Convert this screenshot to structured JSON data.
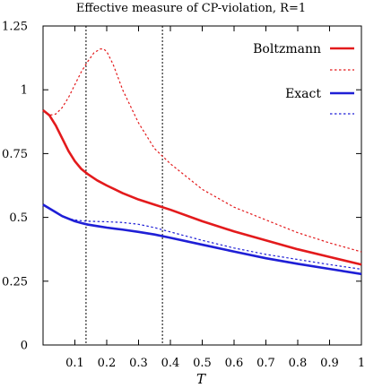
{
  "chart_data": {
    "type": "line",
    "title": "Effective measure of CP-violation, R=1",
    "xlabel": "T",
    "ylabel": "",
    "xlim": [
      0,
      1
    ],
    "ylim": [
      0,
      1.25
    ],
    "x_ticks": [
      "0.1",
      "0.2",
      "0.3",
      "0.4",
      "0.5",
      "0.6",
      "0.7",
      "0.8",
      "0.9",
      "1"
    ],
    "y_ticks": [
      "0",
      "0.25",
      "0.5",
      "0.75",
      "1",
      "1.25"
    ],
    "x_tick_values": [
      0.1,
      0.2,
      0.3,
      0.4,
      0.5,
      0.6,
      0.7,
      0.8,
      0.9,
      1.0
    ],
    "y_tick_values": [
      0,
      0.25,
      0.5,
      0.75,
      1.0,
      1.25
    ],
    "vertical_lines": [
      0.135,
      0.375
    ],
    "legend_position": "top-right",
    "series": [
      {
        "name": "Boltzmann",
        "color": "#e31a1c",
        "style": "solid",
        "x": [
          0.0,
          0.02,
          0.04,
          0.06,
          0.08,
          0.1,
          0.12,
          0.14,
          0.17,
          0.2,
          0.25,
          0.3,
          0.35,
          0.4,
          0.5,
          0.6,
          0.7,
          0.8,
          0.9,
          1.0
        ],
        "y": [
          0.92,
          0.9,
          0.86,
          0.81,
          0.76,
          0.72,
          0.69,
          0.67,
          0.645,
          0.625,
          0.595,
          0.57,
          0.55,
          0.53,
          0.485,
          0.445,
          0.41,
          0.375,
          0.345,
          0.315
        ]
      },
      {
        "name": "",
        "color": "#e31a1c",
        "style": "dotted",
        "x": [
          0.0,
          0.02,
          0.04,
          0.06,
          0.08,
          0.1,
          0.12,
          0.14,
          0.16,
          0.18,
          0.19,
          0.2,
          0.22,
          0.25,
          0.3,
          0.35,
          0.4,
          0.5,
          0.6,
          0.7,
          0.8,
          0.9,
          1.0
        ],
        "y": [
          0.92,
          0.9,
          0.905,
          0.93,
          0.97,
          1.02,
          1.07,
          1.11,
          1.145,
          1.16,
          1.16,
          1.15,
          1.1,
          1.0,
          0.87,
          0.77,
          0.71,
          0.61,
          0.54,
          0.49,
          0.44,
          0.4,
          0.365
        ]
      },
      {
        "name": "Exact",
        "color": "#1f1fd6",
        "style": "solid",
        "x": [
          0.0,
          0.02,
          0.04,
          0.06,
          0.08,
          0.1,
          0.12,
          0.14,
          0.17,
          0.2,
          0.25,
          0.3,
          0.35,
          0.4,
          0.5,
          0.6,
          0.7,
          0.8,
          0.9,
          1.0
        ],
        "y": [
          0.55,
          0.535,
          0.52,
          0.505,
          0.495,
          0.485,
          0.478,
          0.472,
          0.466,
          0.46,
          0.452,
          0.443,
          0.433,
          0.42,
          0.393,
          0.366,
          0.34,
          0.318,
          0.298,
          0.278
        ]
      },
      {
        "name": "",
        "color": "#1f1fd6",
        "style": "dotted",
        "x": [
          0.0,
          0.02,
          0.04,
          0.06,
          0.08,
          0.1,
          0.12,
          0.14,
          0.17,
          0.2,
          0.25,
          0.3,
          0.35,
          0.4,
          0.5,
          0.6,
          0.7,
          0.8,
          0.9,
          1.0
        ],
        "y": [
          0.55,
          0.535,
          0.52,
          0.505,
          0.495,
          0.49,
          0.487,
          0.485,
          0.484,
          0.483,
          0.48,
          0.473,
          0.46,
          0.443,
          0.41,
          0.38,
          0.355,
          0.335,
          0.315,
          0.297
        ]
      }
    ]
  }
}
